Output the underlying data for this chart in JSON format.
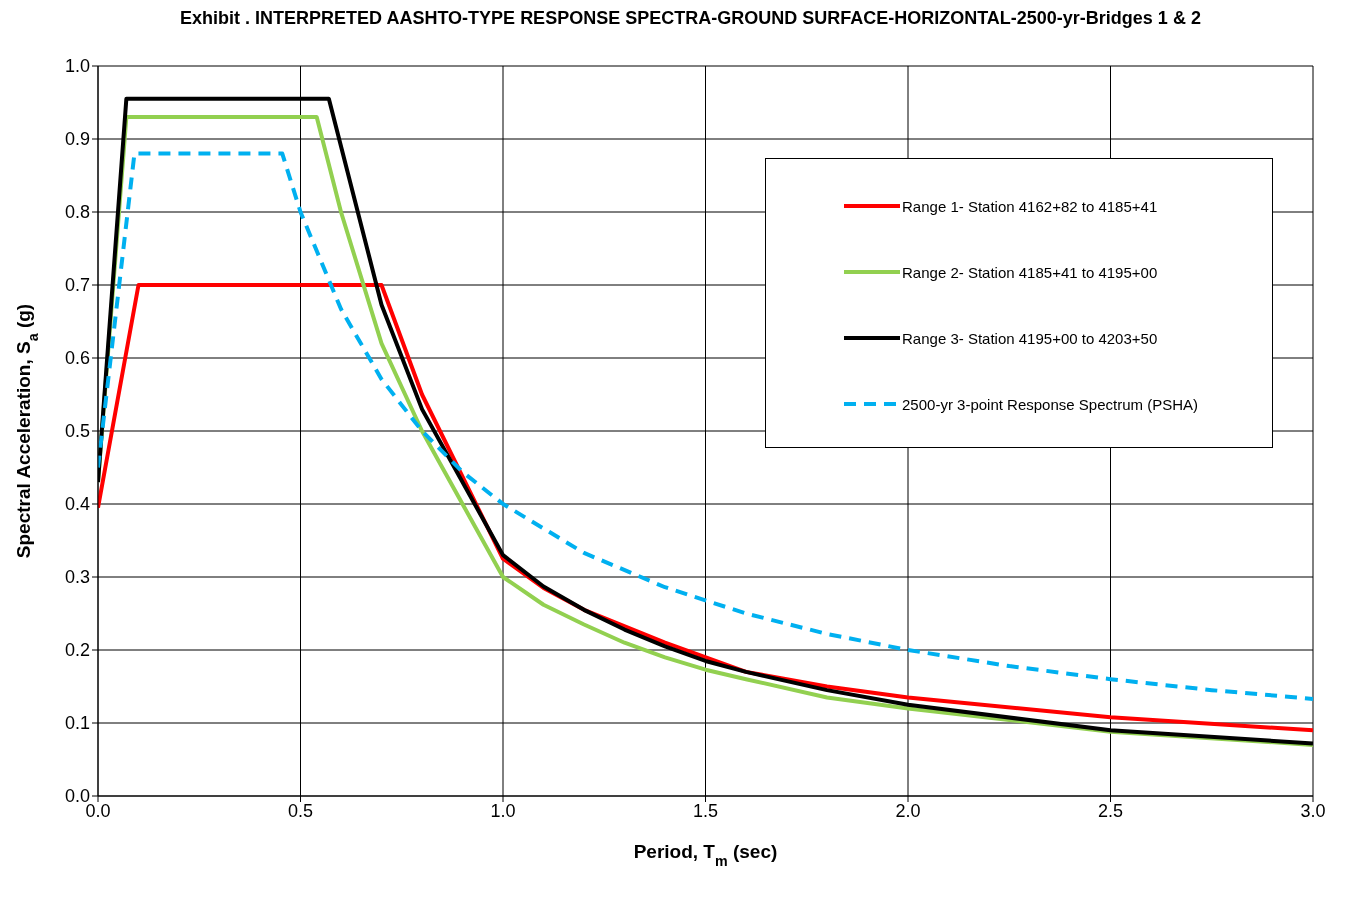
{
  "chart_data": {
    "type": "line",
    "title": "Exhibit   . INTERPRETED AASHTO-TYPE RESPONSE SPECTRA-GROUND SURFACE-HORIZONTAL-2500-yr-Bridges 1 & 2",
    "xlabel": "Period, T$_{m}$ (sec)",
    "ylabel": "Spectral Acceleration, S$_{a}$ (g)",
    "xlim": [
      0,
      3
    ],
    "xticks": [
      {
        "value": 0,
        "label": "0.0"
      },
      0.5,
      {
        "value": 1,
        "label": "1.0"
      },
      1.5,
      {
        "value": 2,
        "label": "2.0"
      },
      2.5,
      {
        "value": 3,
        "label": "3.0"
      }
    ],
    "ylim": [
      0,
      1
    ],
    "yticks": [
      {
        "value": 0,
        "label": "0.0"
      },
      0.1,
      0.2,
      0.3,
      0.4,
      0.5,
      0.6,
      0.7,
      0.8,
      0.9,
      {
        "value": 1,
        "label": "1.0"
      }
    ],
    "grid": true,
    "legend": "top right",
    "series": [
      {
        "name": "Range 1- Station 4162+82 to 4185+41",
        "color": "#ff0000",
        "line_style": "solid",
        "x": [
          0,
          0.1,
          0.7,
          0.8,
          1.0,
          1.1,
          1.2,
          1.4,
          1.6,
          1.8,
          2.0,
          2.5,
          3.0
        ],
        "values": [
          0.395,
          0.7,
          0.7,
          0.55,
          0.325,
          0.285,
          0.255,
          0.21,
          0.17,
          0.15,
          0.135,
          0.108,
          0.09
        ]
      },
      {
        "name": "Range 2- Station 4185+41 to 4195+00",
        "color": "#92d050",
        "line_style": "solid",
        "x": [
          0,
          0.07,
          0.54,
          0.6,
          0.7,
          0.8,
          0.9,
          1.0,
          1.1,
          1.2,
          1.3,
          1.4,
          1.5,
          1.6,
          1.8,
          2.0,
          2.5,
          3.0
        ],
        "values": [
          0.43,
          0.93,
          0.93,
          0.8,
          0.62,
          0.5,
          0.4,
          0.3,
          0.262,
          0.235,
          0.21,
          0.19,
          0.173,
          0.16,
          0.135,
          0.12,
          0.088,
          0.07
        ]
      },
      {
        "name": "Range 3- Station 4195+00 to 4203+50",
        "color": "#000000",
        "line_style": "solid",
        "x": [
          0,
          0.07,
          0.57,
          0.7,
          0.8,
          1.0,
          1.1,
          1.2,
          1.3,
          1.4,
          1.5,
          1.6,
          1.8,
          2.0,
          2.5,
          3.0
        ],
        "values": [
          0.43,
          0.955,
          0.955,
          0.673,
          0.53,
          0.33,
          0.287,
          0.255,
          0.228,
          0.205,
          0.185,
          0.17,
          0.145,
          0.125,
          0.09,
          0.072
        ]
      },
      {
        "name": "2500-yr 3-point Response Spectrum (PSHA)",
        "color": "#00b0f0",
        "line_style": "dashed",
        "x": [
          0,
          0.09,
          0.455,
          0.5,
          0.6,
          0.7,
          0.8,
          0.9,
          1.0,
          1.2,
          1.4,
          1.6,
          1.8,
          2.0,
          2.25,
          2.5,
          2.75,
          3.0
        ],
        "values": [
          0.45,
          0.88,
          0.88,
          0.8,
          0.667,
          0.571,
          0.5,
          0.444,
          0.4,
          0.333,
          0.286,
          0.25,
          0.222,
          0.2,
          0.178,
          0.16,
          0.145,
          0.133
        ]
      }
    ]
  }
}
